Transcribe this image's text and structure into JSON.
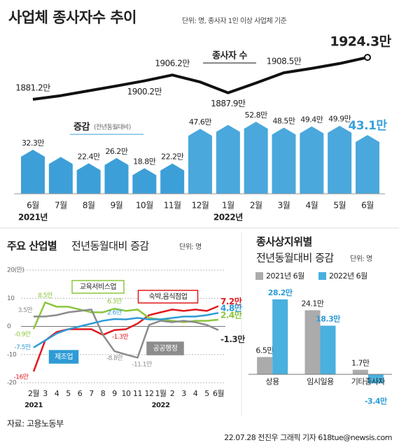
{
  "title": "사업체 종사자수 추이",
  "title_suffix": "추이",
  "unit_note": "단위: 명, 종사자 1인 이상 사업체 기준",
  "chart_data": [
    {
      "type": "bar-line",
      "categories": [
        "6월",
        "7월",
        "8월",
        "9월",
        "10월",
        "11월",
        "12월",
        "1월",
        "2월",
        "3월",
        "4월",
        "5월",
        "6월"
      ],
      "year_labels": [
        "2021년",
        "2022년"
      ],
      "series": [
        {
          "name": "종사자 수",
          "type": "line",
          "color": "#111111",
          "values": [
            1881.2,
            1885.0,
            1890.0,
            1895.0,
            1900.2,
            1906.2,
            1899.0,
            1887.9,
            1898.0,
            1908.5,
            1913.0,
            1918.0,
            1924.3
          ],
          "value_labels": [
            "1881.2만",
            null,
            null,
            null,
            "1900.2만",
            "1906.2만",
            null,
            "1887.9만",
            null,
            "1908.5만",
            null,
            null,
            "1924.3만"
          ]
        },
        {
          "name": "증감",
          "name_note": "(전년동월대비)",
          "type": "bar",
          "color": "#4aa8dc",
          "values": [
            32.3,
            27.0,
            22.4,
            26.2,
            18.8,
            22.2,
            47.6,
            50.5,
            52.8,
            48.5,
            49.4,
            49.9,
            43.1
          ],
          "value_labels": [
            "32.3만",
            null,
            "22.4만",
            "26.2만",
            "18.8만",
            "22.2만",
            "47.6만",
            null,
            "52.8만",
            "48.5만",
            "49.4만",
            "49.9만",
            "43.1만"
          ]
        }
      ]
    },
    {
      "type": "line",
      "title": "주요 산업별",
      "title_suffix": "전년동월대비 증감",
      "unit_note": "단위: 명",
      "categories": [
        "2월",
        "3",
        "4",
        "5",
        "6",
        "7",
        "8",
        "9",
        "10",
        "11",
        "12",
        "1월",
        "2",
        "3",
        "4",
        "5",
        "6월"
      ],
      "year_labels": [
        "2021",
        "2022"
      ],
      "ylim": [
        -20,
        20
      ],
      "yticks": [
        {
          "value": 20,
          "label": "20(만)"
        },
        10,
        0,
        -10,
        -20
      ],
      "grid": true,
      "series": [
        {
          "name": "숙박,음식점업",
          "color": "#e0191e",
          "values": [
            -16,
            -5,
            -2,
            -1,
            -1,
            -1,
            -3,
            -1.3,
            -1,
            1,
            4,
            5,
            6,
            5.5,
            6,
            5.5,
            7.2
          ],
          "value_labels": [
            "-16만",
            null,
            null,
            null,
            null,
            null,
            null,
            "-1.3만",
            null,
            null,
            null,
            null,
            null,
            null,
            null,
            null,
            "7.2만"
          ]
        },
        {
          "name": "교육서비스업",
          "color": "#8cc63e",
          "values": [
            -0.9,
            8.5,
            7,
            7,
            6,
            5,
            5,
            6.3,
            5.5,
            6,
            3,
            2.5,
            2,
            1.5,
            2,
            2,
            2.4
          ],
          "value_labels": [
            "-0.9만",
            "8.5만",
            null,
            null,
            null,
            null,
            null,
            "6.3만",
            null,
            null,
            null,
            null,
            null,
            null,
            null,
            null,
            "2.4만"
          ]
        },
        {
          "name": "공공행정",
          "color": "#8c8c8c",
          "values": [
            3.5,
            3.5,
            4,
            5,
            5.5,
            6,
            -3,
            -8.8,
            -10,
            -11.1,
            0.5,
            2,
            1.5,
            2,
            1.5,
            0.5,
            -1.3
          ],
          "value_labels": [
            "3.5만",
            null,
            null,
            null,
            null,
            null,
            null,
            "-8.8만",
            null,
            "-11.1만",
            null,
            null,
            null,
            null,
            null,
            null,
            "-1.3만"
          ]
        },
        {
          "name": "제조업",
          "color": "#2e9bd6",
          "values": [
            -7.5,
            -5,
            -2.5,
            -1,
            0,
            1,
            2,
            2.6,
            2.5,
            3,
            2.5,
            2.5,
            3,
            3.5,
            3.5,
            4,
            4.8
          ],
          "value_labels": [
            "-7.5만",
            null,
            null,
            null,
            null,
            null,
            null,
            "2.6만",
            null,
            null,
            null,
            null,
            null,
            null,
            null,
            null,
            "4.8만"
          ]
        }
      ]
    },
    {
      "type": "grouped-bar",
      "title": "종사상지위별",
      "title_suffix": "전년동월대비 증감",
      "unit_note": "단위: 명",
      "categories": [
        "상용",
        "임시일용",
        "기타종사자"
      ],
      "series": [
        {
          "name": "2021년 6월",
          "color": "#ababab",
          "values": [
            6.5,
            24.1,
            1.7
          ],
          "value_labels": [
            "6.5만",
            "24.1만",
            "1.7만"
          ]
        },
        {
          "name": "2022년 6월",
          "color": "#4ab0de",
          "values": [
            28.2,
            18.3,
            -3.4
          ],
          "value_labels": [
            "28.2만",
            "18.3만",
            "-3.4만"
          ]
        }
      ]
    }
  ],
  "source": "자료: 고용노동부",
  "credit": "22.07.28 전진우 그래픽 기자 618tue@newsis.com"
}
